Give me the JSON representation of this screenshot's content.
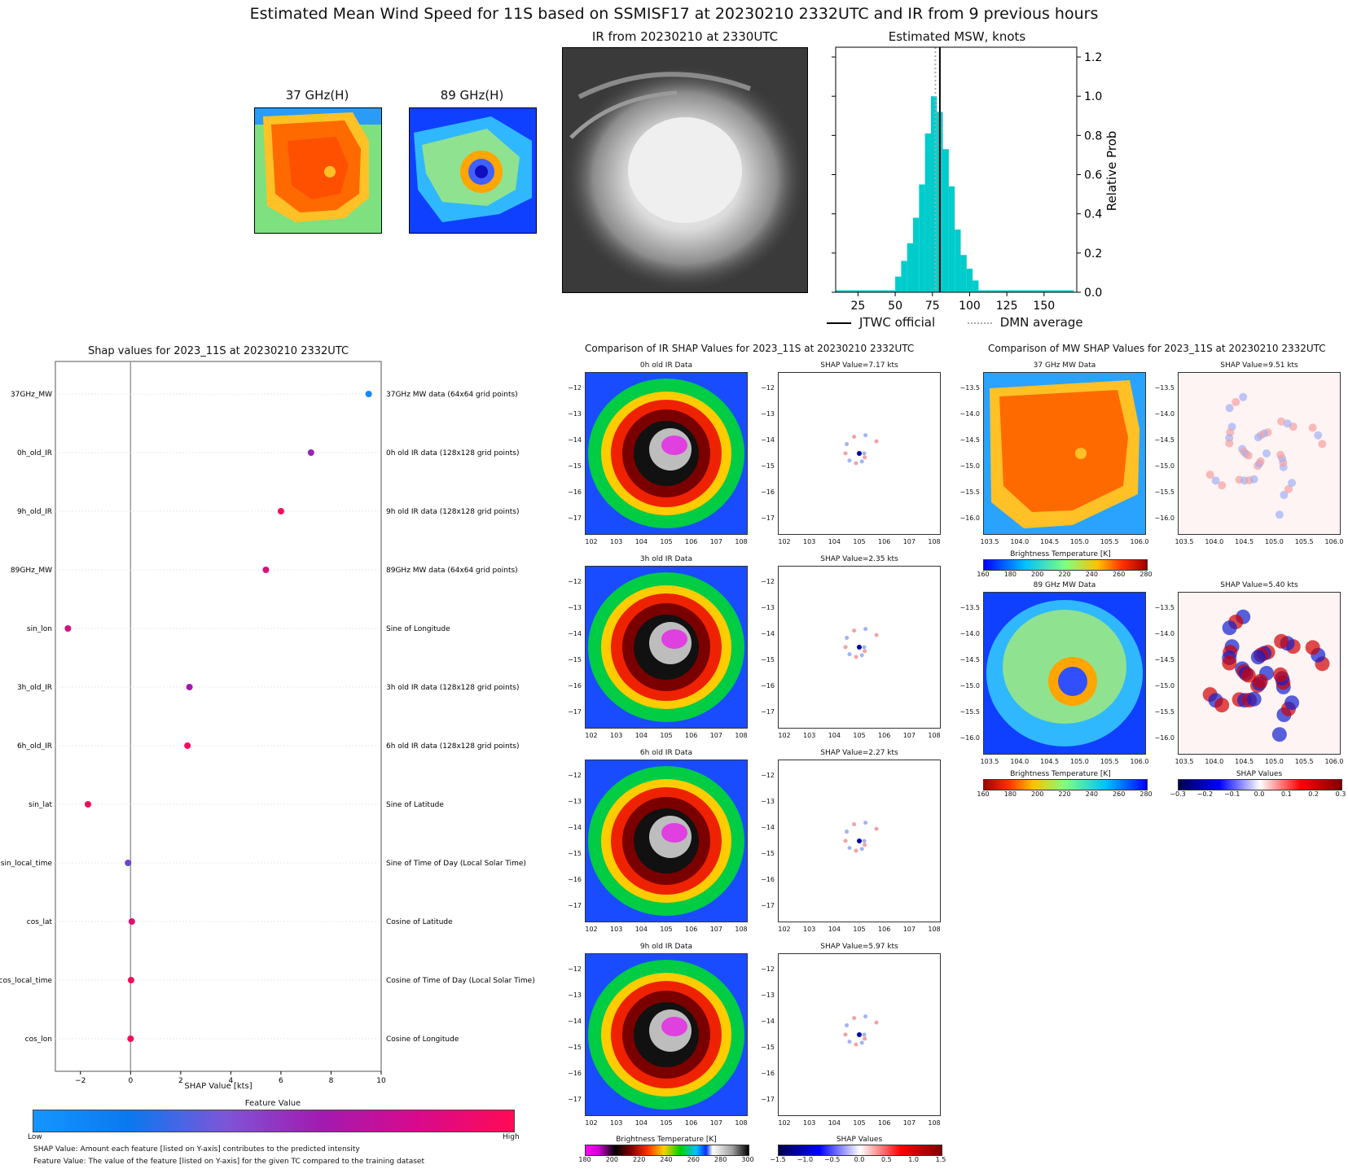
{
  "header": {
    "title": "Estimated Mean Wind Speed for 11S based on SSMISF17 at 20230210 2332UTC and IR from 9 previous hours"
  },
  "top_panels": {
    "mw37_title": "37 GHz(H)",
    "mw89_title": "89 GHz(H)",
    "ir_title": "IR from 20230210 at 2330UTC",
    "msw_title": "Estimated MSW, knots",
    "msw_ylabel": "Relative Prob",
    "legend_jtwc": "JTWC official",
    "legend_dmn": "DMN average"
  },
  "shap_panel": {
    "title": "Shap values for 2023_11S at 20230210 2332UTC",
    "xlabel": "SHAP Value [kts]",
    "colorbar_title": "Feature Value",
    "colorbar_low": "Low",
    "colorbar_high": "High",
    "note1": "SHAP Value: Amount each feature [listed on Y-axis] contributes to the predicted intensity",
    "note2": "Feature Value: The value of the feature [listed on Y-axis] for the given TC compared to the training dataset"
  },
  "ir_compare": {
    "title": "Comparison of IR SHAP Values for 2023_11S at 20230210 2332UTC",
    "rows": [
      {
        "data_title": "0h old IR Data",
        "shap_title": "SHAP Value=7.17 kts"
      },
      {
        "data_title": "3h old IR Data",
        "shap_title": "SHAP Value=2.35 kts"
      },
      {
        "data_title": "6h old IR Data",
        "shap_title": "SHAP Value=2.27 kts"
      },
      {
        "data_title": "9h old IR Data",
        "shap_title": "SHAP Value=5.97 kts"
      }
    ],
    "bt_colorbar_title": "Brightness Temperature [K]",
    "bt_ticks": [
      "180",
      "200",
      "220",
      "240",
      "260",
      "280",
      "300"
    ],
    "shap_colorbar_title": "SHAP Values",
    "shap_ticks": [
      "−1.5",
      "−1.0",
      "−0.5",
      "0.0",
      "0.5",
      "1.0",
      "1.5"
    ],
    "x_ticks": [
      "102",
      "103",
      "104",
      "105",
      "106",
      "107",
      "108"
    ],
    "y_ticks": [
      "−12",
      "−13",
      "−14",
      "−15",
      "−16",
      "−17"
    ]
  },
  "mw_compare": {
    "title": "Comparison of MW SHAP Values for 2023_11S at 20230210 2332UTC",
    "rows": [
      {
        "data_title": "37 GHz MW Data",
        "shap_title": "SHAP Value=9.51 kts"
      },
      {
        "data_title": "89 GHz MW Data",
        "shap_title": "SHAP Value=5.40 kts"
      }
    ],
    "bt_colorbar_title": "Brightness Temperature [K]",
    "bt_ticks": [
      "160",
      "180",
      "200",
      "220",
      "240",
      "260",
      "280"
    ],
    "shap_colorbar_title": "SHAP Values",
    "shap_ticks": [
      "−0.3",
      "−0.2",
      "−0.1",
      "0.0",
      "0.1",
      "0.2",
      "0.3"
    ],
    "x_ticks": [
      "103.5",
      "104.0",
      "104.5",
      "105.0",
      "105.5",
      "106.0"
    ],
    "y_ticks": [
      "−13.5",
      "−14.0",
      "−14.5",
      "−15.0",
      "−15.5",
      "−16.0"
    ]
  },
  "colors": {
    "bar": "#00cccc",
    "low": "#0088ff",
    "high": "#ff0055"
  },
  "chart_data": [
    {
      "type": "bar",
      "title": "Estimated MSW, knots",
      "ylabel": "Relative Prob",
      "xlim": [
        10,
        172
      ],
      "ylim": [
        0,
        1.25
      ],
      "x_ticks": [
        25,
        50,
        75,
        100,
        125,
        150
      ],
      "y_ticks": [
        0.0,
        0.2,
        0.4,
        0.6,
        0.8,
        1.0,
        1.2
      ],
      "bin_width": 4,
      "bins": [
        {
          "x": 10,
          "y": 0.01
        },
        {
          "x": 14,
          "y": 0.01
        },
        {
          "x": 18,
          "y": 0.01
        },
        {
          "x": 22,
          "y": 0.01
        },
        {
          "x": 26,
          "y": 0.01
        },
        {
          "x": 30,
          "y": 0.01
        },
        {
          "x": 34,
          "y": 0.01
        },
        {
          "x": 38,
          "y": 0.01
        },
        {
          "x": 42,
          "y": 0.01
        },
        {
          "x": 46,
          "y": 0.01
        },
        {
          "x": 50,
          "y": 0.08
        },
        {
          "x": 54,
          "y": 0.16
        },
        {
          "x": 58,
          "y": 0.25
        },
        {
          "x": 62,
          "y": 0.38
        },
        {
          "x": 66,
          "y": 0.55
        },
        {
          "x": 70,
          "y": 0.81
        },
        {
          "x": 74,
          "y": 1.0
        },
        {
          "x": 78,
          "y": 0.92
        },
        {
          "x": 82,
          "y": 0.73
        },
        {
          "x": 86,
          "y": 0.54
        },
        {
          "x": 90,
          "y": 0.32
        },
        {
          "x": 94,
          "y": 0.19
        },
        {
          "x": 98,
          "y": 0.12
        },
        {
          "x": 102,
          "y": 0.06
        },
        {
          "x": 106,
          "y": 0.01
        },
        {
          "x": 110,
          "y": 0.01
        },
        {
          "x": 114,
          "y": 0.01
        },
        {
          "x": 118,
          "y": 0.01
        },
        {
          "x": 122,
          "y": 0.01
        },
        {
          "x": 126,
          "y": 0.01
        },
        {
          "x": 130,
          "y": 0.01
        },
        {
          "x": 134,
          "y": 0.01
        },
        {
          "x": 138,
          "y": 0.01
        },
        {
          "x": 142,
          "y": 0.01
        },
        {
          "x": 146,
          "y": 0.01
        },
        {
          "x": 150,
          "y": 0.01
        },
        {
          "x": 154,
          "y": 0.01
        },
        {
          "x": 158,
          "y": 0.01
        },
        {
          "x": 162,
          "y": 0.01
        },
        {
          "x": 166,
          "y": 0.01
        }
      ],
      "jtwc_official": 80,
      "dmn_average": 77,
      "legend": [
        "JTWC official",
        "DMN average"
      ]
    },
    {
      "type": "scatter",
      "title": "Shap values for 2023_11S at 20230210 2332UTC",
      "xlabel": "SHAP Value [kts]",
      "xlim": [
        -3,
        10
      ],
      "x_ticks": [
        -2,
        0,
        2,
        4,
        6,
        8,
        10
      ],
      "features": [
        {
          "name": "37GHz_MW",
          "desc": "37GHz MW data (64x64 grid points)",
          "shap": 9.5,
          "feature_value": 0.0
        },
        {
          "name": "0h_old_IR",
          "desc": "0h old IR data (128x128 grid points)",
          "shap": 7.2,
          "feature_value": 0.45
        },
        {
          "name": "9h_old_IR",
          "desc": "9h old IR data (128x128 grid points)",
          "shap": 6.0,
          "feature_value": 0.95
        },
        {
          "name": "89GHz_MW",
          "desc": "89GHz MW data (64x64 grid points)",
          "shap": 5.4,
          "feature_value": 0.8
        },
        {
          "name": "sin_lon",
          "desc": "Sine of Longitude",
          "shap": -2.5,
          "feature_value": 0.75
        },
        {
          "name": "3h_old_IR",
          "desc": "3h old IR data (128x128 grid points)",
          "shap": 2.35,
          "feature_value": 0.5
        },
        {
          "name": "6h_old_IR",
          "desc": "6h old IR data (128x128 grid points)",
          "shap": 2.27,
          "feature_value": 0.95
        },
        {
          "name": "sin_lat",
          "desc": "Sine of Latitude",
          "shap": -1.7,
          "feature_value": 0.95
        },
        {
          "name": "sin_local_time",
          "desc": "Sine of Time of Day (Local Solar Time)",
          "shap": -0.1,
          "feature_value": 0.3
        },
        {
          "name": "cos_lat",
          "desc": "Cosine of Latitude",
          "shap": 0.05,
          "feature_value": 0.85
        },
        {
          "name": "cos_local_time",
          "desc": "Cosine of Time of Day (Local Solar Time)",
          "shap": 0.02,
          "feature_value": 0.95
        },
        {
          "name": "cos_lon",
          "desc": "Cosine of Longitude",
          "shap": 0.0,
          "feature_value": 0.95
        }
      ]
    }
  ]
}
